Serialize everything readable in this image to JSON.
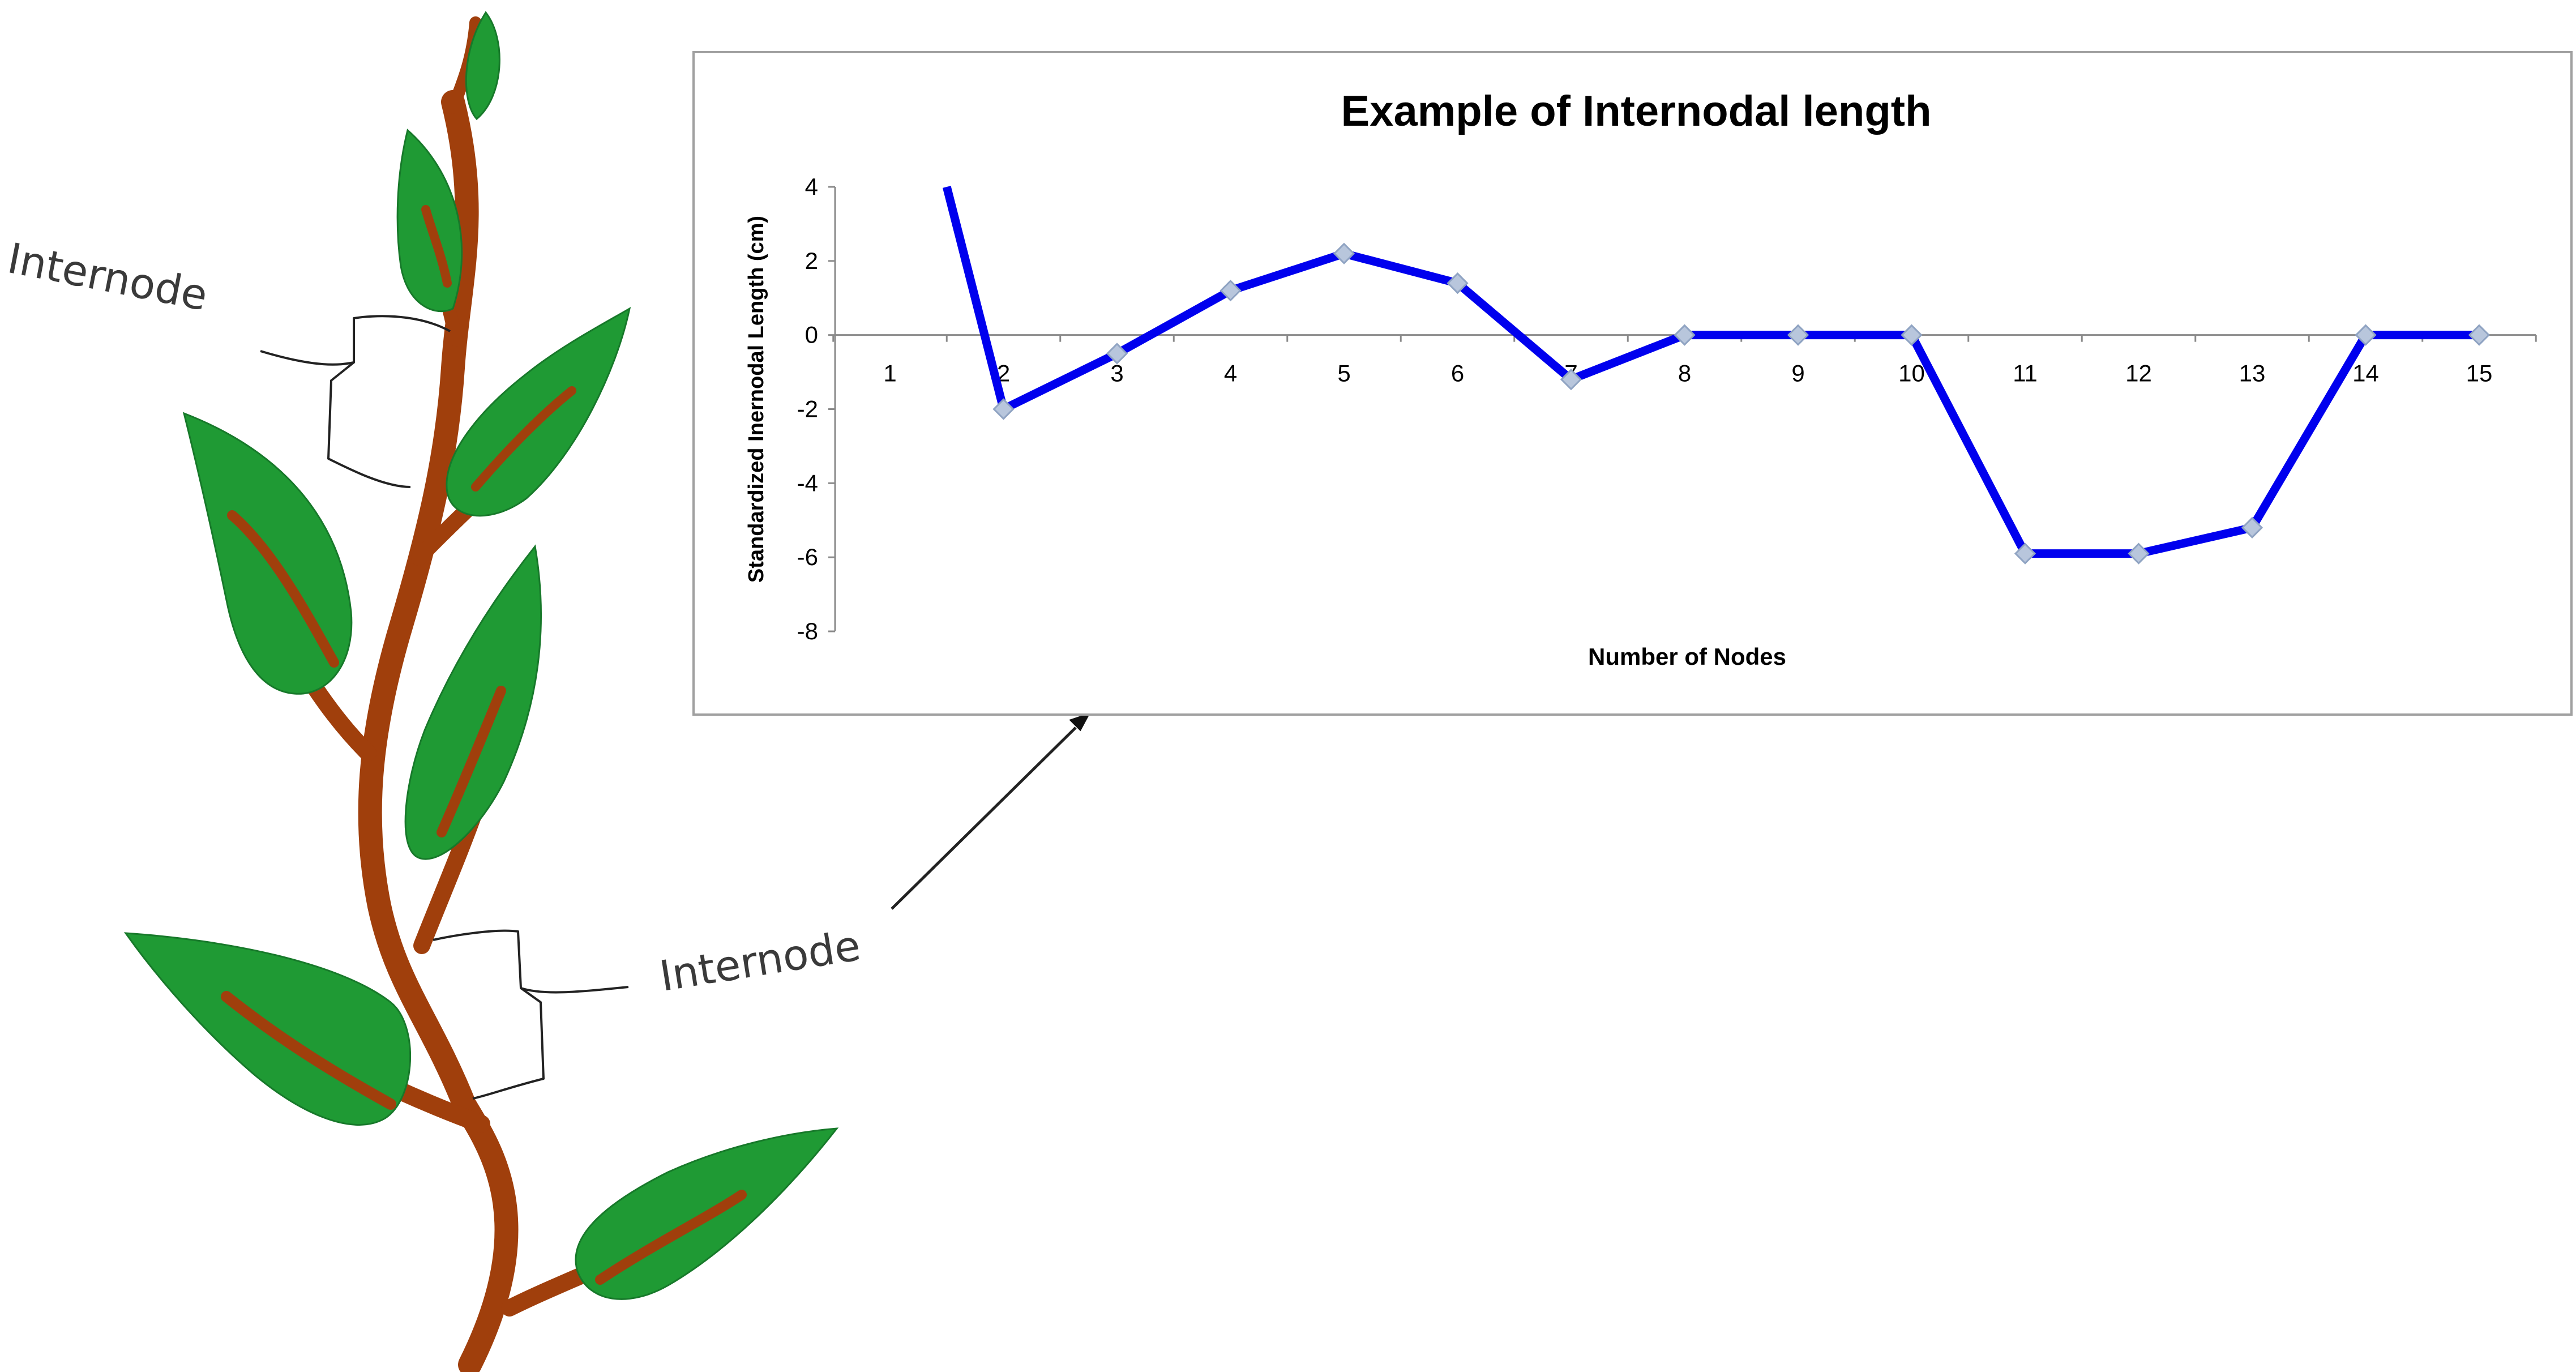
{
  "illustration": {
    "label_top": "Internode",
    "label_bottom": "Internode",
    "colors": {
      "leaf": "#1f9a34",
      "leaf_edge": "#17792a",
      "stem": "#a03f0c",
      "bracket": "#222222",
      "arrow": "#222222"
    }
  },
  "chart_data": {
    "type": "line",
    "title": "Example of Internodal length",
    "xlabel": "Number of Nodes",
    "ylabel": "Standardized Inernodal Length (cm)",
    "categories": [
      "1",
      "2",
      "3",
      "4",
      "5",
      "6",
      "7",
      "8",
      "9",
      "10",
      "11",
      "12",
      "13",
      "14",
      "15"
    ],
    "y_ticks": [
      "4",
      "2",
      "0",
      "-2",
      "-4",
      "-6",
      "-8"
    ],
    "ylim": [
      -8,
      4
    ],
    "series": [
      {
        "values": [
          null,
          -2.0,
          -0.5,
          1.2,
          2.2,
          1.4,
          -1.2,
          0,
          0,
          0,
          -5.9,
          -5.9,
          -5.2,
          0,
          0
        ],
        "lead_in": {
          "x": 1.5,
          "y": 4
        },
        "color": "#0000ee",
        "marker_color": "#b8c6dc"
      }
    ],
    "grid": false,
    "x_axis_at_zero": true
  }
}
